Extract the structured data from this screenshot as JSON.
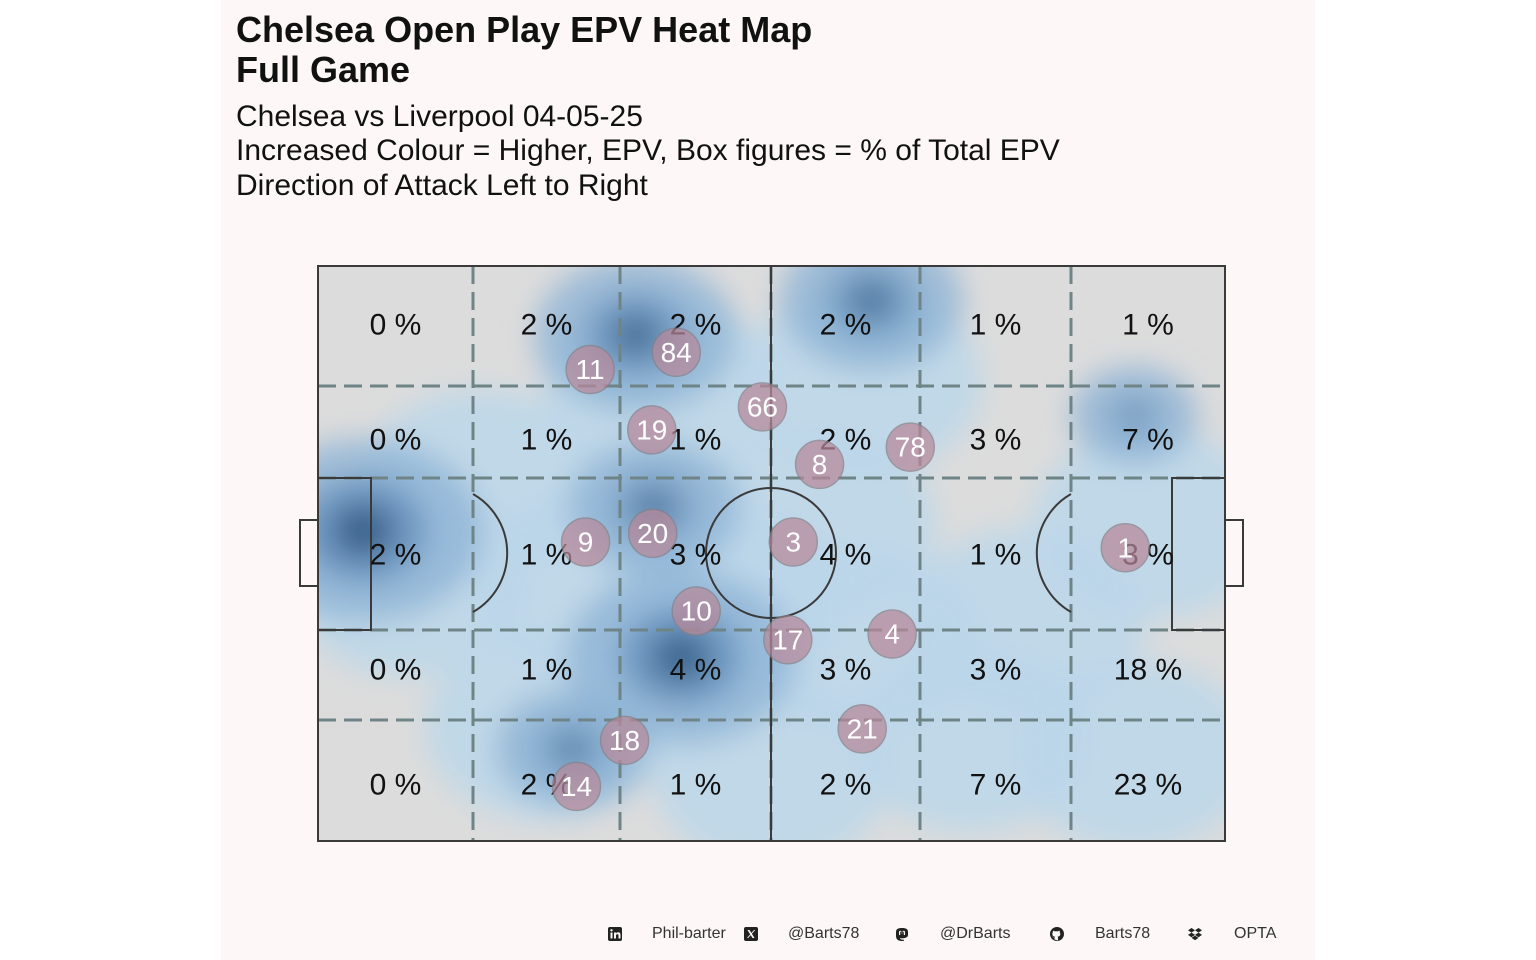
{
  "header": {
    "title_line1": "Chelsea Open Play EPV Heat Map",
    "title_line2": "Full Game",
    "subtitle_line1": "Chelsea vs Liverpool 04-05-25",
    "subtitle_line2": "Increased Colour = Higher, EPV, Box figures = % of Total EPV",
    "subtitle_line3": "Direction of Attack Left to Right"
  },
  "colors": {
    "panel_bg": "#fdf7f7",
    "pitch_fill": "#dcdcdc",
    "pitch_line": "#3a3a3a",
    "grid_line": "#6f8487",
    "heat_light": "#bcd7ea",
    "heat_dark": "#2d5680",
    "player_fill": "#b8899a"
  },
  "chart_data": {
    "type": "heatmap",
    "direction": "left-to-right",
    "grid": {
      "rows": 5,
      "cols": 6,
      "cell_labels": [
        [
          "0 %",
          "2 %",
          "2 %",
          "2 %",
          "1 %",
          "1 %"
        ],
        [
          "0 %",
          "1 %",
          "1 %",
          "2 %",
          "3 %",
          "7 %"
        ],
        [
          "2 %",
          "1 %",
          "3 %",
          "4 %",
          "1 %",
          "3 %"
        ],
        [
          "0 %",
          "1 %",
          "4 %",
          "3 %",
          "3 %",
          "18 %"
        ],
        [
          "0 %",
          "2 %",
          "1 %",
          "2 %",
          "7 %",
          "23 %"
        ]
      ]
    },
    "players": [
      {
        "number": "84",
        "x": 39.5,
        "y": 15
      },
      {
        "number": "11",
        "x": 30,
        "y": 18
      },
      {
        "number": "66",
        "x": 49,
        "y": 24.5
      },
      {
        "number": "19",
        "x": 36.8,
        "y": 28.5
      },
      {
        "number": "78",
        "x": 65.3,
        "y": 31.5
      },
      {
        "number": "8",
        "x": 55.3,
        "y": 34.5
      },
      {
        "number": "9",
        "x": 29.5,
        "y": 48
      },
      {
        "number": "20",
        "x": 36.9,
        "y": 46.5
      },
      {
        "number": "3",
        "x": 52.4,
        "y": 48
      },
      {
        "number": "1",
        "x": 89,
        "y": 49
      },
      {
        "number": "10",
        "x": 41.7,
        "y": 60
      },
      {
        "number": "17",
        "x": 51.8,
        "y": 65
      },
      {
        "number": "4",
        "x": 63.3,
        "y": 64
      },
      {
        "number": "21",
        "x": 60,
        "y": 80.5
      },
      {
        "number": "18",
        "x": 33.8,
        "y": 82.5
      },
      {
        "number": "14",
        "x": 28.5,
        "y": 90.5
      }
    ],
    "density_hotspots": [
      {
        "x": 5,
        "y": 46,
        "weight": 0.95
      },
      {
        "x": 40,
        "y": 68,
        "weight": 0.9
      },
      {
        "x": 35,
        "y": 12,
        "weight": 0.75
      },
      {
        "x": 61,
        "y": 6,
        "weight": 0.65
      },
      {
        "x": 37,
        "y": 42,
        "weight": 0.6
      },
      {
        "x": 28,
        "y": 84,
        "weight": 0.5
      },
      {
        "x": 90,
        "y": 26,
        "weight": 0.35
      }
    ]
  },
  "footer": {
    "linkedin_label": "Phil-barter",
    "x_label": "@Barts78",
    "mastodon_label": "@DrBarts",
    "github_label": "Barts78",
    "data_label": "OPTA"
  }
}
